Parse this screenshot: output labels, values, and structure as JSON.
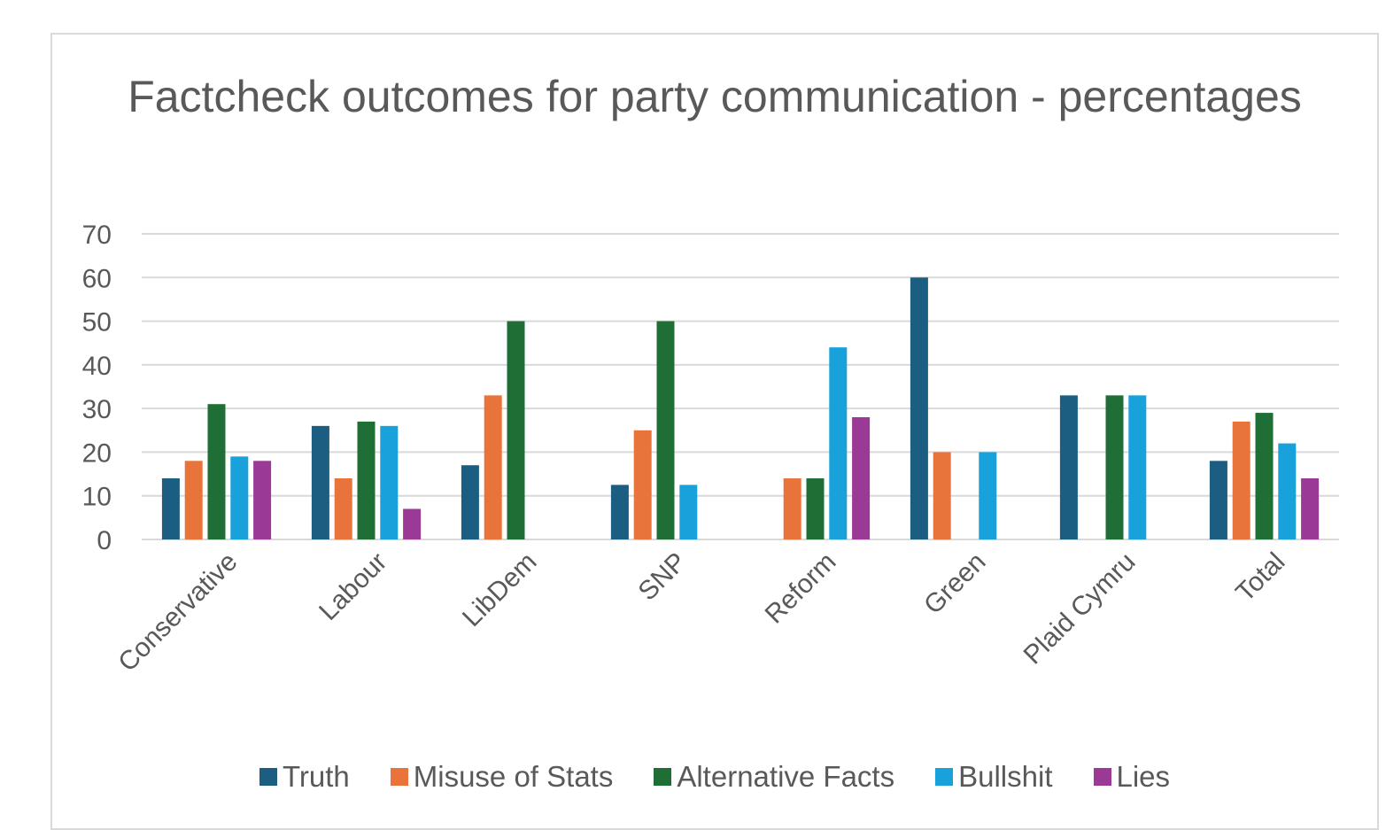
{
  "chart_data": {
    "type": "bar",
    "title": "Factcheck outcomes for party communication - percentages",
    "categories": [
      "Conservative",
      "Labour",
      "LibDem",
      "SNP",
      "Reform",
      "Green",
      "Plaid Cymru",
      "Total"
    ],
    "series": [
      {
        "name": "Truth",
        "color": "#1b5e82",
        "values": [
          14,
          26,
          17,
          12.5,
          0,
          60,
          33,
          18
        ]
      },
      {
        "name": "Misuse of Stats",
        "color": "#e8743b",
        "values": [
          18,
          14,
          33,
          25,
          14,
          20,
          0,
          27
        ]
      },
      {
        "name": "Alternative Facts",
        "color": "#1e6e35",
        "values": [
          31,
          27,
          50,
          50,
          14,
          0,
          33,
          29
        ]
      },
      {
        "name": "Bullshit",
        "color": "#19a1dc",
        "values": [
          19,
          26,
          0,
          12.5,
          44,
          20,
          33,
          22
        ]
      },
      {
        "name": "Lies",
        "color": "#9b3a96",
        "values": [
          18,
          7,
          0,
          0,
          28,
          0,
          0,
          14
        ]
      }
    ],
    "ylim": [
      0,
      70
    ],
    "yticks": [
      0,
      10,
      20,
      30,
      40,
      50,
      60,
      70
    ],
    "grid": true,
    "legend_position": "bottom"
  }
}
